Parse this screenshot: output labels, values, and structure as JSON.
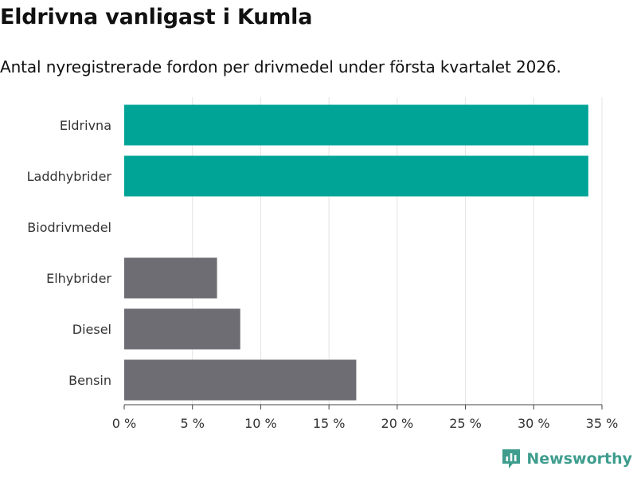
{
  "header": {
    "title": "Eldrivna vanligast i Kumla",
    "subtitle": "Antal nyregistrerade fordon per drivmedel under första kvartalet 2026."
  },
  "chart_data": {
    "type": "bar",
    "orientation": "horizontal",
    "categories": [
      "Eldrivna",
      "Laddhybrider",
      "Biodrivmedel",
      "Elhybrider",
      "Diesel",
      "Bensin"
    ],
    "values": [
      34,
      34,
      0,
      6.8,
      8.5,
      17
    ],
    "colors": [
      "#00a497",
      "#00a497",
      "#00a497",
      "#6e6d73",
      "#6e6d73",
      "#6e6d73"
    ],
    "xlim": [
      0,
      35
    ],
    "xticks": [
      0,
      5,
      10,
      15,
      20,
      25,
      30,
      35
    ],
    "xtick_labels": [
      "0 %",
      "5 %",
      "10 %",
      "15 %",
      "20 %",
      "25 %",
      "30 %",
      "35 %"
    ],
    "xlabel": "",
    "ylabel": "",
    "grid": true
  },
  "branding": {
    "name": "Newsworthy",
    "icon": "newsworthy-logo-icon",
    "color": "#3f9d8e"
  }
}
